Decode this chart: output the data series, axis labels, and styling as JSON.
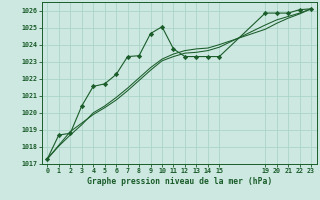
{
  "title": "Graphe pression niveau de la mer (hPa)",
  "bg_color": "#cce8e0",
  "grid_color": "#aad4c8",
  "line_color": "#1a5c2a",
  "marker_color": "#1a5c2a",
  "xlim": [
    -0.5,
    23.5
  ],
  "ylim": [
    1017,
    1026.5
  ],
  "xticks": [
    0,
    1,
    2,
    3,
    4,
    5,
    6,
    7,
    8,
    9,
    10,
    11,
    12,
    13,
    14,
    15,
    19,
    20,
    21,
    22,
    23
  ],
  "yticks": [
    1017,
    1018,
    1019,
    1020,
    1021,
    1022,
    1023,
    1024,
    1025,
    1026
  ],
  "series1_x": [
    0,
    1,
    2,
    3,
    4,
    5,
    6,
    7,
    8,
    9,
    10,
    11,
    12,
    13,
    14,
    15,
    19,
    20,
    21,
    22,
    23
  ],
  "series1_y": [
    1017.3,
    1018.7,
    1018.8,
    1020.4,
    1021.55,
    1021.7,
    1022.25,
    1023.3,
    1023.35,
    1024.65,
    1025.05,
    1023.75,
    1023.3,
    1023.3,
    1023.3,
    1023.3,
    1025.85,
    1025.85,
    1025.85,
    1026.05,
    1026.1
  ],
  "series2_x": [
    0,
    1,
    2,
    3,
    4,
    5,
    6,
    7,
    8,
    9,
    10,
    11,
    12,
    13,
    14,
    15,
    19,
    20,
    21,
    22,
    23
  ],
  "series2_y": [
    1017.3,
    1018.1,
    1018.9,
    1019.4,
    1019.9,
    1020.3,
    1020.75,
    1021.3,
    1021.9,
    1022.5,
    1023.05,
    1023.3,
    1023.5,
    1023.55,
    1023.65,
    1023.85,
    1025.15,
    1025.45,
    1025.65,
    1025.85,
    1026.1
  ],
  "series3_x": [
    0,
    1,
    2,
    3,
    4,
    5,
    6,
    7,
    8,
    9,
    10,
    11,
    12,
    13,
    14,
    15,
    19,
    20,
    21,
    22,
    23
  ],
  "series3_y": [
    1017.3,
    1018.05,
    1018.7,
    1019.3,
    1020.0,
    1020.4,
    1020.9,
    1021.45,
    1022.05,
    1022.65,
    1023.15,
    1023.45,
    1023.65,
    1023.75,
    1023.8,
    1024.0,
    1024.9,
    1025.25,
    1025.55,
    1025.8,
    1026.1
  ]
}
